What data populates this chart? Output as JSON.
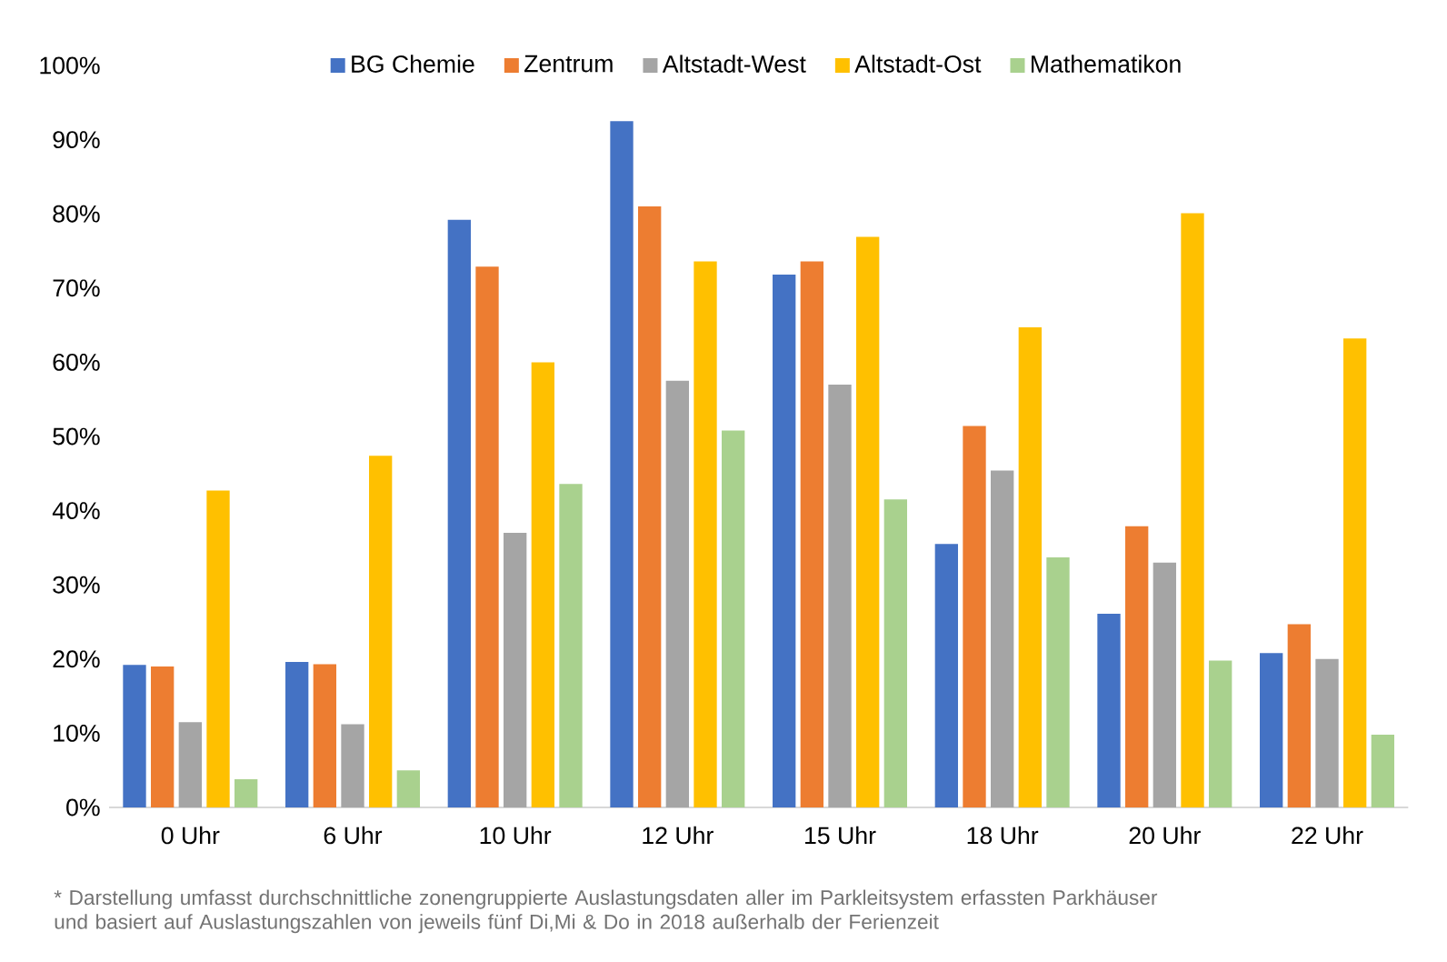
{
  "chart_data": {
    "type": "bar",
    "categories": [
      "0 Uhr",
      "6 Uhr",
      "10 Uhr",
      "12 Uhr",
      "15 Uhr",
      "18 Uhr",
      "20 Uhr",
      "22 Uhr"
    ],
    "series": [
      {
        "name": "BG Chemie",
        "color": "#4472c4",
        "values": [
          19.2,
          19.6,
          79.2,
          92.5,
          71.8,
          35.5,
          26.1,
          20.8
        ]
      },
      {
        "name": "Zentrum",
        "color": "#ed7d31",
        "values": [
          19,
          19.3,
          72.9,
          81,
          73.6,
          51.4,
          37.9,
          24.7
        ]
      },
      {
        "name": "Altstadt-West",
        "color": "#a5a5a5",
        "values": [
          11.5,
          11.2,
          37,
          57.5,
          57,
          45.4,
          33,
          20
        ]
      },
      {
        "name": "Altstadt-Ost",
        "color": "#ffc000",
        "values": [
          42.7,
          47.4,
          60,
          73.6,
          76.9,
          64.7,
          80.1,
          63.2
        ]
      },
      {
        "name": "Mathematikon",
        "color": "#a9d18e",
        "values": [
          3.8,
          5,
          43.6,
          50.8,
          41.5,
          33.7,
          19.8,
          9.8
        ]
      }
    ],
    "ylim": [
      0,
      100
    ],
    "yticks": [
      {
        "value": 0,
        "label": "0%"
      },
      {
        "value": 10,
        "label": "10%"
      },
      {
        "value": 20,
        "label": "20%"
      },
      {
        "value": 30,
        "label": "30%"
      },
      {
        "value": 40,
        "label": "40%"
      },
      {
        "value": 50,
        "label": "50%"
      },
      {
        "value": 60,
        "label": "60%"
      },
      {
        "value": 70,
        "label": "70%"
      },
      {
        "value": 80,
        "label": "80%"
      },
      {
        "value": 90,
        "label": "90%"
      },
      {
        "value": 100,
        "label": "100%"
      }
    ],
    "legend": "top",
    "annotations": [
      "* Darstellung umfasst durchschnittliche zonengruppierte Auslastungsdaten aller im Parkleitsystem erfassten Parkhäuser und basiert auf Auslastungszahlen von jeweils fünf Di,Mi & Do in 2018 außerhalb der Ferienzeit"
    ]
  }
}
